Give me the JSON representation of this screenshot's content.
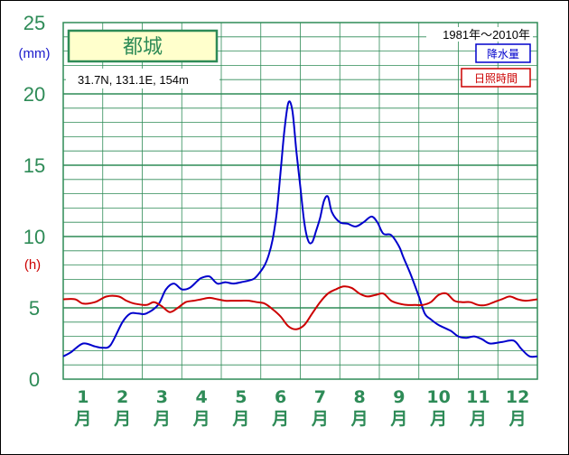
{
  "chart_data": {
    "type": "line",
    "title": "都城",
    "location": "31.7N,  131.1E,  154m",
    "period": "1981年〜2010年",
    "y_ticks": [
      "0",
      "5",
      "10",
      "15",
      "20",
      "25"
    ],
    "y_unit_precip": "(mm)",
    "y_unit_sun": "(h)",
    "ylim": [
      0,
      25
    ],
    "x_months": [
      "1",
      "2",
      "3",
      "4",
      "5",
      "6",
      "7",
      "8",
      "9",
      "10",
      "11",
      "12"
    ],
    "month_suffix": "月",
    "grid": true,
    "legend_position": "top-right",
    "x_unit": "month",
    "xlim": [
      0.5,
      12.5
    ],
    "series": [
      {
        "name": "降水量",
        "color": "#0000cc",
        "x": [
          0.5,
          0.7,
          1.0,
          1.3,
          1.5,
          1.7,
          2.0,
          2.2,
          2.4,
          2.6,
          2.9,
          3.1,
          3.3,
          3.5,
          3.7,
          3.9,
          4.0,
          4.2,
          4.4,
          4.6,
          4.8,
          5.0,
          5.3,
          5.45,
          5.6,
          5.7,
          5.8,
          5.9,
          6.0,
          6.1,
          6.2,
          6.3,
          6.4,
          6.5,
          6.6,
          6.7,
          6.8,
          6.9,
          7.0,
          7.1,
          7.2,
          7.3,
          7.5,
          7.7,
          7.9,
          8.1,
          8.3,
          8.45,
          8.6,
          8.8,
          9.0,
          9.1,
          9.3,
          9.5,
          9.65,
          9.8,
          10.0,
          10.3,
          10.5,
          10.7,
          10.9,
          11.1,
          11.3,
          11.6,
          11.9,
          12.1,
          12.3,
          12.5
        ],
        "y": [
          1.6,
          1.9,
          2.5,
          2.3,
          2.2,
          2.4,
          4.0,
          4.6,
          4.6,
          4.6,
          5.2,
          6.3,
          6.7,
          6.3,
          6.4,
          6.9,
          7.1,
          7.2,
          6.7,
          6.8,
          6.7,
          6.8,
          7.0,
          7.4,
          8.0,
          8.7,
          9.8,
          11.6,
          14.5,
          17.5,
          19.4,
          18.8,
          16.0,
          13.5,
          11.0,
          9.7,
          9.6,
          10.4,
          11.3,
          12.5,
          12.8,
          11.7,
          11.0,
          10.9,
          10.7,
          11.0,
          11.4,
          11.0,
          10.2,
          10.1,
          9.3,
          8.6,
          7.3,
          5.8,
          4.6,
          4.2,
          3.8,
          3.4,
          3.0,
          2.9,
          3.0,
          2.8,
          2.5,
          2.6,
          2.7,
          2.1,
          1.6,
          1.6
        ]
      },
      {
        "name": "日照時間",
        "color": "#cc0000",
        "x": [
          0.5,
          0.8,
          1.0,
          1.3,
          1.6,
          1.9,
          2.1,
          2.3,
          2.6,
          2.8,
          3.0,
          3.2,
          3.4,
          3.6,
          3.8,
          4.0,
          4.2,
          4.4,
          4.6,
          4.8,
          5.0,
          5.2,
          5.4,
          5.6,
          5.8,
          6.0,
          6.2,
          6.4,
          6.6,
          6.8,
          7.0,
          7.2,
          7.4,
          7.6,
          7.8,
          8.0,
          8.2,
          8.4,
          8.6,
          8.8,
          9.0,
          9.2,
          9.4,
          9.6,
          9.8,
          10.0,
          10.2,
          10.4,
          10.6,
          10.8,
          11.0,
          11.2,
          11.4,
          11.6,
          11.8,
          12.0,
          12.2,
          12.5
        ],
        "y": [
          5.6,
          5.6,
          5.3,
          5.4,
          5.8,
          5.8,
          5.5,
          5.3,
          5.2,
          5.4,
          5.1,
          4.7,
          5.0,
          5.4,
          5.5,
          5.6,
          5.7,
          5.6,
          5.5,
          5.5,
          5.5,
          5.5,
          5.4,
          5.3,
          4.9,
          4.4,
          3.7,
          3.5,
          3.8,
          4.6,
          5.4,
          6.0,
          6.3,
          6.5,
          6.4,
          6.0,
          5.8,
          5.9,
          6.0,
          5.5,
          5.3,
          5.2,
          5.2,
          5.2,
          5.4,
          5.9,
          6.0,
          5.5,
          5.4,
          5.4,
          5.2,
          5.2,
          5.4,
          5.6,
          5.8,
          5.6,
          5.5,
          5.6
        ]
      }
    ]
  }
}
